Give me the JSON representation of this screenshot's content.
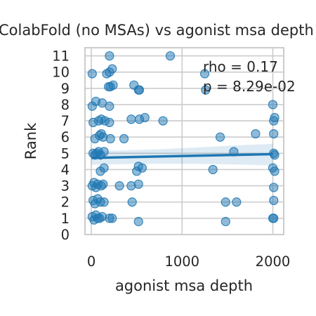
{
  "chart_data": {
    "type": "scatter",
    "title": "ColabFold (no MSAs) vs agonist msa depth",
    "xlabel": "agonist msa depth",
    "ylabel": "Rank",
    "xlim": [
      -70,
      2120
    ],
    "ylim": [
      0,
      11.5
    ],
    "xticks": [
      0,
      1000,
      2000
    ],
    "yticks": [
      0,
      1,
      2,
      3,
      4,
      5,
      6,
      7,
      8,
      9,
      10,
      11
    ],
    "grid": true,
    "annotation": {
      "rho_text": "rho = 0.17",
      "p_text": "p = 8.29e-02"
    },
    "regression": {
      "x": [
        0,
        2000
      ],
      "y": [
        4.72,
        4.95
      ],
      "ci_upper": [
        5.15,
        5.58
      ],
      "ci_lower": [
        4.3,
        4.25
      ]
    },
    "points": [
      {
        "x": 200,
        "y": 11.0
      },
      {
        "x": 870,
        "y": 11.0
      },
      {
        "x": 10,
        "y": 9.9
      },
      {
        "x": 170,
        "y": 9.9
      },
      {
        "x": 200,
        "y": 10.0
      },
      {
        "x": 230,
        "y": 10.2
      },
      {
        "x": 1250,
        "y": 9.9
      },
      {
        "x": 190,
        "y": 9.1
      },
      {
        "x": 210,
        "y": 9.1
      },
      {
        "x": 240,
        "y": 9.2
      },
      {
        "x": 470,
        "y": 9.2
      },
      {
        "x": 520,
        "y": 8.9
      },
      {
        "x": 530,
        "y": 8.9
      },
      {
        "x": 1260,
        "y": 8.9
      },
      {
        "x": 10,
        "y": 7.9
      },
      {
        "x": 50,
        "y": 8.2
      },
      {
        "x": 120,
        "y": 8.1
      },
      {
        "x": 200,
        "y": 7.9
      },
      {
        "x": 2000,
        "y": 8.0
      },
      {
        "x": 20,
        "y": 6.9
      },
      {
        "x": 80,
        "y": 7.0
      },
      {
        "x": 110,
        "y": 7.1
      },
      {
        "x": 150,
        "y": 7.0
      },
      {
        "x": 200,
        "y": 6.9
      },
      {
        "x": 440,
        "y": 7.1
      },
      {
        "x": 530,
        "y": 7.1
      },
      {
        "x": 590,
        "y": 7.2
      },
      {
        "x": 790,
        "y": 7.0
      },
      {
        "x": 2010,
        "y": 7.0
      },
      {
        "x": 2020,
        "y": 7.2
      },
      {
        "x": 40,
        "y": 5.9
      },
      {
        "x": 90,
        "y": 6.1
      },
      {
        "x": 110,
        "y": 6.2
      },
      {
        "x": 130,
        "y": 6.0
      },
      {
        "x": 210,
        "y": 5.9
      },
      {
        "x": 360,
        "y": 5.9
      },
      {
        "x": 1420,
        "y": 6.0
      },
      {
        "x": 1810,
        "y": 6.2
      },
      {
        "x": 2010,
        "y": 6.2
      },
      {
        "x": 20,
        "y": 5.0
      },
      {
        "x": 40,
        "y": 4.9
      },
      {
        "x": 60,
        "y": 5.0
      },
      {
        "x": 80,
        "y": 5.1
      },
      {
        "x": 100,
        "y": 4.9
      },
      {
        "x": 140,
        "y": 5.1
      },
      {
        "x": 1570,
        "y": 5.1
      },
      {
        "x": 2010,
        "y": 5.0
      },
      {
        "x": 2020,
        "y": 4.9
      },
      {
        "x": 100,
        "y": 3.9
      },
      {
        "x": 140,
        "y": 4.1
      },
      {
        "x": 500,
        "y": 3.9
      },
      {
        "x": 520,
        "y": 4.2
      },
      {
        "x": 560,
        "y": 4.1
      },
      {
        "x": 1340,
        "y": 4.0
      },
      {
        "x": 2000,
        "y": 4.1
      },
      {
        "x": 2020,
        "y": 3.9
      },
      {
        "x": 10,
        "y": 3.0
      },
      {
        "x": 30,
        "y": 3.2
      },
      {
        "x": 50,
        "y": 2.9
      },
      {
        "x": 70,
        "y": 3.1
      },
      {
        "x": 110,
        "y": 3.0
      },
      {
        "x": 130,
        "y": 3.1
      },
      {
        "x": 310,
        "y": 3.0
      },
      {
        "x": 440,
        "y": 3.0
      },
      {
        "x": 520,
        "y": 3.1
      },
      {
        "x": 2010,
        "y": 2.9
      },
      {
        "x": 20,
        "y": 2.1
      },
      {
        "x": 40,
        "y": 1.9
      },
      {
        "x": 70,
        "y": 2.2
      },
      {
        "x": 100,
        "y": 2.0
      },
      {
        "x": 140,
        "y": 2.0
      },
      {
        "x": 450,
        "y": 2.0
      },
      {
        "x": 1480,
        "y": 2.0
      },
      {
        "x": 1600,
        "y": 2.0
      },
      {
        "x": 2010,
        "y": 2.1
      },
      {
        "x": 10,
        "y": 1.1
      },
      {
        "x": 30,
        "y": 0.9
      },
      {
        "x": 50,
        "y": 1.2
      },
      {
        "x": 70,
        "y": 1.0
      },
      {
        "x": 90,
        "y": 1.0
      },
      {
        "x": 120,
        "y": 1.1
      },
      {
        "x": 200,
        "y": 1.0
      },
      {
        "x": 230,
        "y": 1.0
      },
      {
        "x": 520,
        "y": 0.8
      },
      {
        "x": 1480,
        "y": 0.8
      },
      {
        "x": 2000,
        "y": 1.0
      },
      {
        "x": 2010,
        "y": 1.0
      }
    ]
  }
}
